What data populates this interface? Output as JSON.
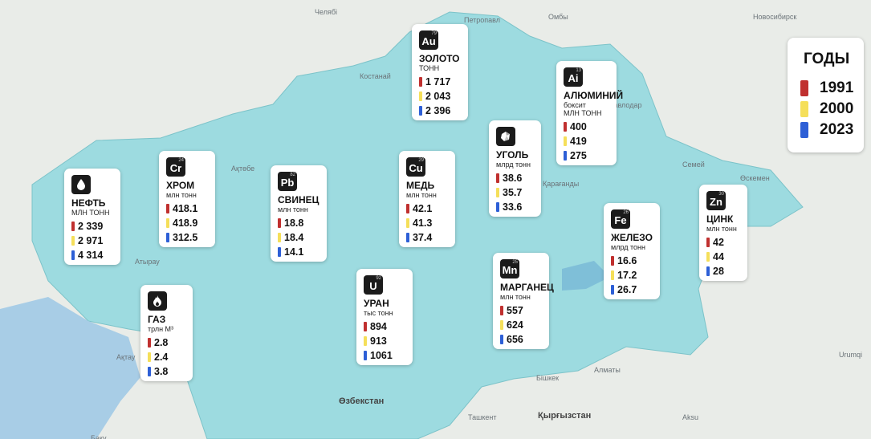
{
  "legend": {
    "title": "ГОДЫ",
    "items": [
      {
        "year": "1991",
        "color": "#c0302f"
      },
      {
        "year": "2000",
        "color": "#f5df5a"
      },
      {
        "year": "2023",
        "color": "#2d5fd6"
      }
    ]
  },
  "cards": [
    {
      "symbol": "Au",
      "number": "79",
      "name": "ЗОЛОТО",
      "units": [
        "ТОНН"
      ],
      "values": [
        "1 717",
        "2 043",
        "2 396"
      ]
    },
    {
      "symbol": "Ai",
      "number": "13",
      "name": "АЛЮМИНИЙ",
      "units": [
        "боксит",
        "МЛН ТОНН"
      ],
      "values": [
        "400",
        "419",
        "275"
      ]
    },
    {
      "icon": "coal",
      "name": "УГОЛЬ",
      "units": [
        "млрд тонн"
      ],
      "values": [
        "38.6",
        "35.7",
        "33.6"
      ]
    },
    {
      "symbol": "Cu",
      "number": "29",
      "name": "МЕДЬ",
      "units": [
        "млн тонн"
      ],
      "values": [
        "42.1",
        "41.3",
        "37.4"
      ]
    },
    {
      "symbol": "Pb",
      "number": "82",
      "name": "СВИНЕЦ",
      "units": [
        "млн тонн"
      ],
      "values": [
        "18.8",
        "18.4",
        "14.1"
      ]
    },
    {
      "symbol": "Cr",
      "number": "24",
      "name": "ХРОМ",
      "units": [
        "млн тонн"
      ],
      "values": [
        "418.1",
        "418.9",
        "312.5"
      ]
    },
    {
      "icon": "oil",
      "name": "НЕФТЬ",
      "units": [
        "МЛН ТОНН"
      ],
      "values": [
        "2 339",
        "2 971",
        "4 314"
      ]
    },
    {
      "icon": "gas",
      "name": "ГАЗ",
      "units": [
        "трлн М³"
      ],
      "values": [
        "2.8",
        "2.4",
        "3.8"
      ]
    },
    {
      "symbol": "U",
      "number": "92",
      "name": "УРАН",
      "units": [
        "тыс тонн"
      ],
      "values": [
        "894",
        "913",
        "1061"
      ]
    },
    {
      "symbol": "Mn",
      "number": "25",
      "name": "МАРГАНЕЦ",
      "units": [
        "млн тонн"
      ],
      "values": [
        "557",
        "624",
        "656"
      ]
    },
    {
      "symbol": "Fe",
      "number": "26",
      "name": "ЖЕЛЕЗО",
      "units": [
        "млрд тонн"
      ],
      "values": [
        "16.6",
        "17.2",
        "26.7"
      ]
    },
    {
      "symbol": "Zn",
      "number": "30",
      "name": "ЦИНК",
      "units": [
        "млн тонн"
      ],
      "values": [
        "42",
        "44",
        "28"
      ]
    }
  ],
  "map": {
    "cities": [
      "Челябі",
      "Омбы",
      "Новосибирск",
      "Петропавл",
      "Костанай",
      "Павлодар",
      "Ақтөбе",
      "Семей",
      "Өскемен",
      "Қарағанды",
      "Атырау",
      "Ақтау",
      "Бішкек",
      "Алматы",
      "Ташкент",
      "Urumqi",
      "Aksu",
      "Баку"
    ],
    "countries": [
      "Өзбекстан",
      "Қырғызстан"
    ]
  }
}
